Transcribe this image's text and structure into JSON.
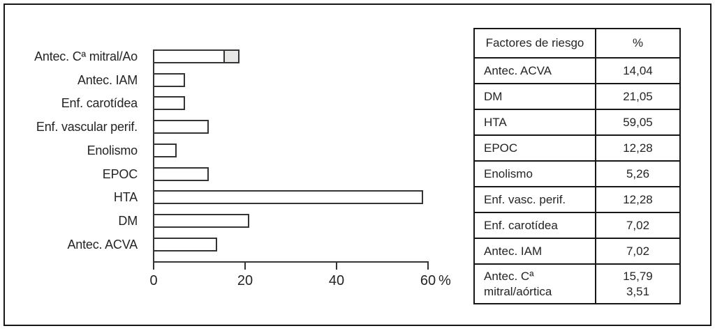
{
  "chart_data": {
    "type": "bar",
    "orientation": "horizontal",
    "title": "",
    "xlabel": "%",
    "xlim": [
      0,
      60
    ],
    "xticks": [
      "0",
      "20",
      "40",
      "60"
    ],
    "unit": "%",
    "grid": false,
    "categories": [
      "Antec. Cª mitral/Ao",
      "Antec. IAM",
      "Enf. carotídea",
      "Enf. vascular perif.",
      "Enolismo",
      "EPOC",
      "HTA",
      "DM",
      "Antec. ACVA"
    ],
    "bars": [
      {
        "label": "Antec. Cª mitral/Ao",
        "segments": [
          {
            "name": "mitral",
            "value": 15.79,
            "fill": "#ffffff"
          },
          {
            "name": "aórtica",
            "value": 3.51,
            "fill": "#e8e8e7"
          }
        ]
      },
      {
        "label": "Antec. IAM",
        "segments": [
          {
            "value": 7.02,
            "fill": "#ffffff"
          }
        ]
      },
      {
        "label": "Enf. carotídea",
        "segments": [
          {
            "value": 7.02,
            "fill": "#ffffff"
          }
        ]
      },
      {
        "label": "Enf. vascular perif.",
        "segments": [
          {
            "value": 12.28,
            "fill": "#ffffff"
          }
        ]
      },
      {
        "label": "Enolismo",
        "segments": [
          {
            "value": 5.26,
            "fill": "#ffffff"
          }
        ]
      },
      {
        "label": "EPOC",
        "segments": [
          {
            "value": 12.28,
            "fill": "#ffffff"
          }
        ]
      },
      {
        "label": "HTA",
        "segments": [
          {
            "value": 59.05,
            "fill": "#ffffff"
          }
        ]
      },
      {
        "label": "DM",
        "segments": [
          {
            "value": 21.05,
            "fill": "#ffffff"
          }
        ]
      },
      {
        "label": "Antec. ACVA",
        "segments": [
          {
            "value": 14.04,
            "fill": "#ffffff"
          }
        ]
      }
    ]
  },
  "table": {
    "headers": [
      "Factores de riesgo",
      "%"
    ],
    "rows": [
      {
        "factor": "Antec. ACVA",
        "pct": "14,04"
      },
      {
        "factor": "DM",
        "pct": "21,05"
      },
      {
        "factor": "HTA",
        "pct": "59,05"
      },
      {
        "factor": "EPOC",
        "pct": "12,28"
      },
      {
        "factor": "Enolismo",
        "pct": "5,26"
      },
      {
        "factor": "Enf. vasc. perif.",
        "pct": "12,28"
      },
      {
        "factor": "Enf. carotídea",
        "pct": "7,02"
      },
      {
        "factor": "Antec. IAM",
        "pct": "7,02"
      },
      {
        "factor_lines": [
          "Antec. Cª",
          "mitral/aórtica"
        ],
        "pct_lines": [
          "15,79",
          "3,51"
        ]
      }
    ]
  },
  "colors": {
    "bar_fill": "#ffffff",
    "bar_fill_secondary": "#e8e8e7",
    "bar_stroke": "#343434",
    "frame_border": "#161616",
    "text": "#242424"
  }
}
